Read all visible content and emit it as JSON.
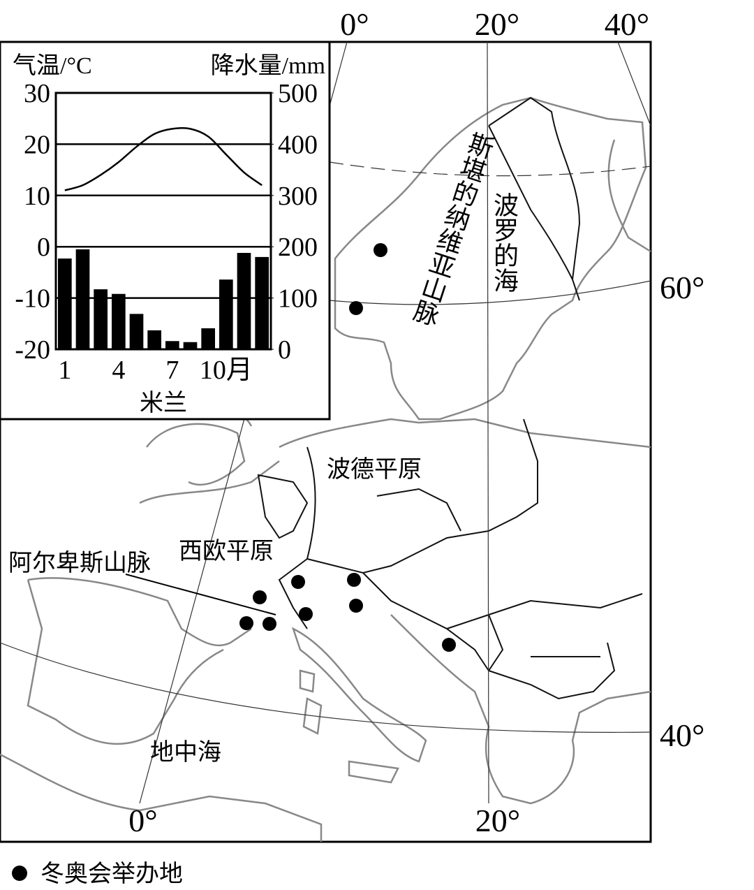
{
  "map": {
    "top_lon_labels": [
      "0°",
      "20°",
      "40°"
    ],
    "lat_labels": [
      "60°",
      "40°"
    ],
    "bottom_lon_labels": [
      "0°",
      "20°"
    ],
    "places": {
      "mountains_north": "斯堪的纳维亚山脉",
      "baltic": "波罗的海",
      "polish_plain": "波德平原",
      "west_plain": "西欧平原",
      "alps": "阿尔卑斯山脉",
      "mediterranean": "地中海"
    },
    "legend": "冬奥会举办地"
  },
  "chart_data": {
    "type": "bar-line",
    "station": "米兰",
    "y_label": "气温/°C",
    "y2_label": "降水量/mm",
    "categories": [
      "1",
      null,
      null,
      "4",
      null,
      null,
      "7",
      null,
      null,
      "10月",
      null,
      null
    ],
    "series": [
      {
        "name": "气温",
        "type": "line",
        "color": "#000000",
        "values": [
          11,
          12,
          14,
          16.5,
          19.5,
          22,
          23,
          23,
          21.5,
          18,
          14.5,
          12
        ]
      },
      {
        "name": "降水量",
        "type": "bar",
        "axis": "y2",
        "color": "#000000",
        "values": [
          177,
          195,
          117,
          108,
          69,
          37,
          16,
          14,
          41,
          136,
          188,
          180
        ]
      }
    ],
    "ylim": [
      -20,
      30
    ],
    "yticks": [
      30,
      20,
      10,
      0,
      -10,
      -20
    ],
    "y2lim": [
      0,
      500
    ],
    "y2ticks": [
      500,
      400,
      300,
      200,
      100,
      0
    ],
    "grid": true
  }
}
